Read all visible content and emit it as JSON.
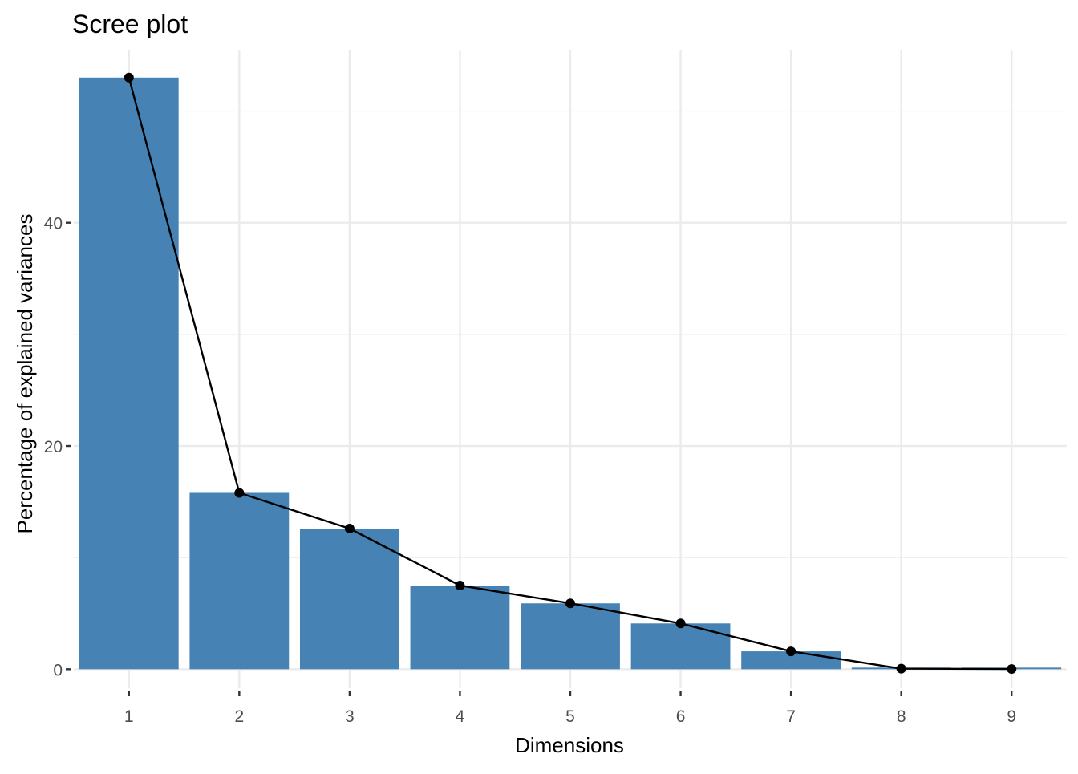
{
  "chart_data": {
    "type": "bar",
    "title": "Scree plot",
    "xlabel": "Dimensions",
    "ylabel": "Percentage of explained variances",
    "categories": [
      "1",
      "2",
      "3",
      "4",
      "5",
      "6",
      "7",
      "8",
      "9"
    ],
    "values": [
      53.0,
      15.8,
      12.6,
      7.5,
      5.9,
      4.1,
      1.6,
      0.05,
      0.02
    ],
    "ylim": [
      -1.7,
      55.5
    ],
    "yticks": [
      "0",
      "20",
      "40"
    ],
    "ytick_values": [
      0,
      20,
      40
    ],
    "grid": true,
    "bar_color": "#4682B4",
    "line_color": "#000000",
    "line_overlay": true,
    "legend": "none"
  }
}
